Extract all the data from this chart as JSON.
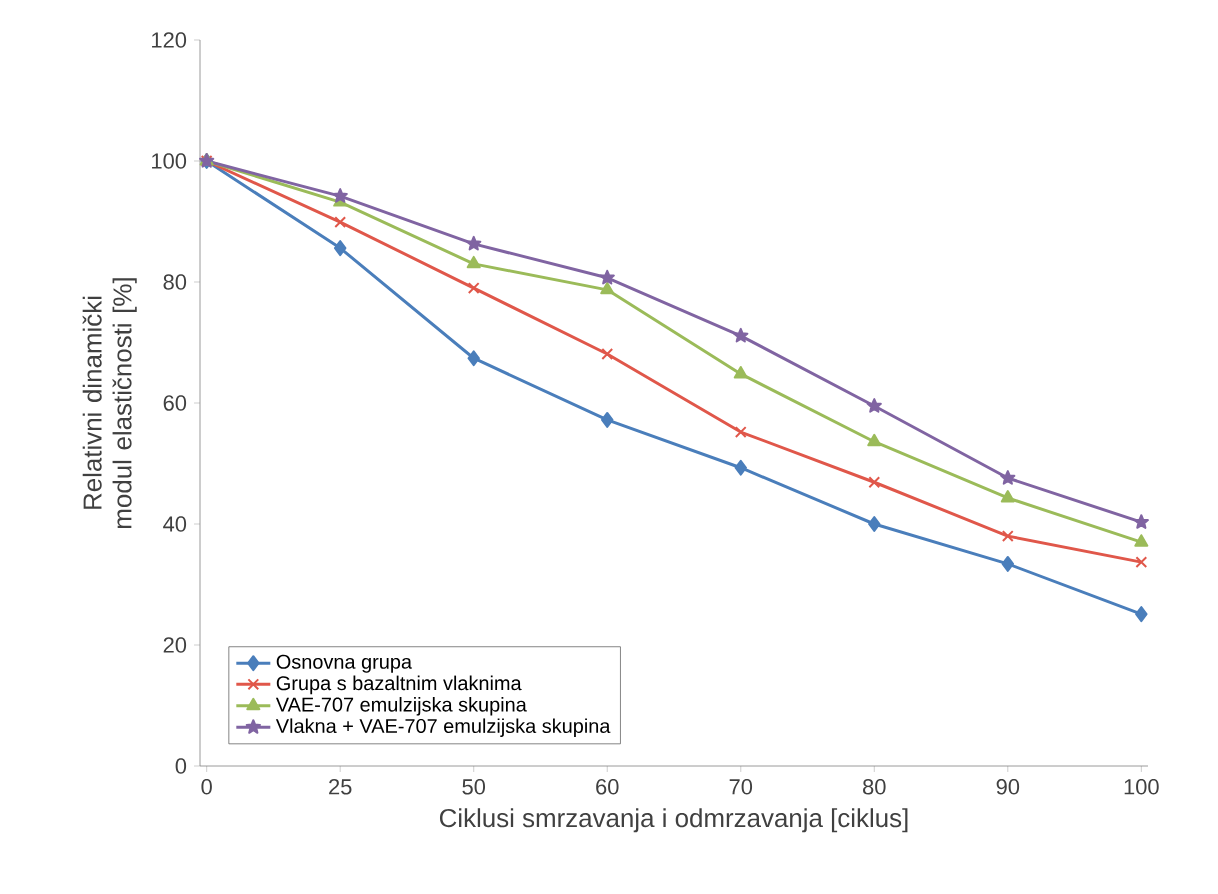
{
  "chart_data": {
    "type": "line",
    "xlabel": "Ciklusi smrzavanja i odmrzavanja [ciklus]",
    "ylabel": "Relativni dinamički modul elastičnosti [%]",
    "categories": [
      "0",
      "25",
      "50",
      "60",
      "70",
      "80",
      "90",
      "100"
    ],
    "ylim": [
      0,
      120
    ],
    "yticks": [
      0,
      20,
      40,
      60,
      80,
      100,
      120
    ],
    "grid": false,
    "legend": "bottom left",
    "series": [
      {
        "name": "Osnovna grupa",
        "color": "#4a7ebb",
        "marker": "diamond",
        "values": [
          100,
          85.6,
          67.4,
          57.2,
          49.3,
          40,
          33.4,
          25.1
        ]
      },
      {
        "name": "Grupa s bazaltnim vlaknima",
        "color": "#e0574a",
        "marker": "cross",
        "values": [
          100,
          89.9,
          79,
          68.1,
          55.2,
          46.9,
          38,
          33.7
        ]
      },
      {
        "name": "VAE-707 emulzijska skupina",
        "color": "#9bbb59",
        "marker": "triangle",
        "values": [
          100,
          93.2,
          83,
          78.7,
          64.8,
          53.6,
          44.3,
          37
        ]
      },
      {
        "name": "Vlakna + VAE-707 emulzijska skupina",
        "color": "#8064a2",
        "marker": "star",
        "values": [
          100,
          94.2,
          86.3,
          80.7,
          71.1,
          59.5,
          47.6,
          40.3
        ]
      }
    ]
  }
}
